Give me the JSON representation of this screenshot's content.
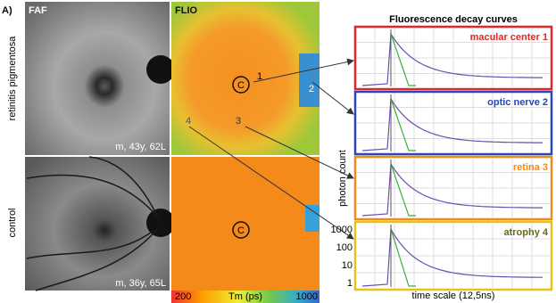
{
  "figure": {
    "panel_label": "A)",
    "columns": [
      "FAF",
      "FLIO"
    ],
    "rows": [
      {
        "label": "retinitis pigmentosa",
        "patient": "m, 43y, 62L"
      },
      {
        "label": "control",
        "patient": "m, 36y, 65L"
      }
    ],
    "markers": {
      "center": "C",
      "points": [
        "1",
        "2",
        "3",
        "4"
      ]
    },
    "colorbar": {
      "min": "200",
      "label": "Tm (ps)",
      "max": "1000"
    }
  },
  "decay": {
    "title": "Fluorescence decay curves",
    "panels": [
      {
        "label": "macular center 1",
        "color": "#e02828"
      },
      {
        "label": "optic nerve 2",
        "color": "#2a46b8"
      },
      {
        "label": "retina 3",
        "color": "#f08a1c"
      },
      {
        "label": "atrophy 4",
        "color": "#e6c21a"
      }
    ],
    "y_label": "photon count",
    "y_ticks": [
      "1000",
      "100",
      "10",
      "1"
    ],
    "x_label": "time scale (12,5ns)"
  }
}
